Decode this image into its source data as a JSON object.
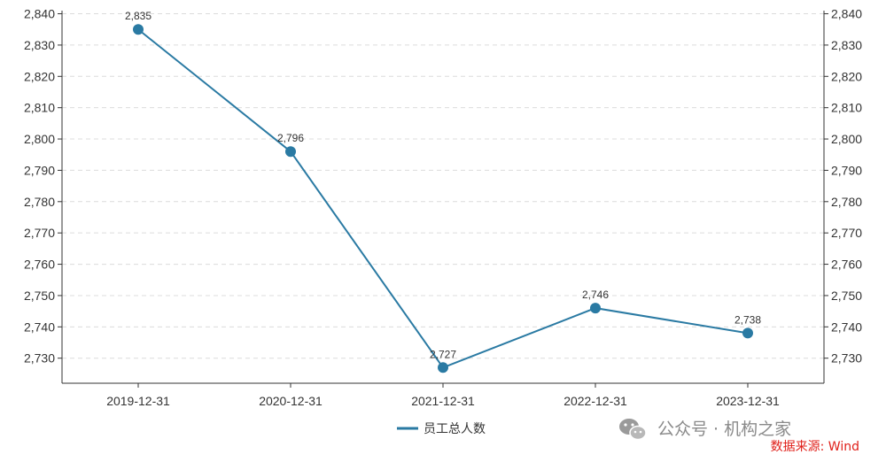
{
  "chart_data": {
    "type": "line",
    "categories": [
      "2019-12-31",
      "2020-12-31",
      "2021-12-31",
      "2022-12-31",
      "2023-12-31"
    ],
    "series": [
      {
        "name": "员工总人数",
        "values": [
          2835,
          2796,
          2727,
          2746,
          2738
        ],
        "color": "#2a7aa3"
      }
    ],
    "data_labels": [
      "2,835",
      "2,796",
      "2,727",
      "2,746",
      "2,738"
    ],
    "ylim": [
      2722,
      2841
    ],
    "y_ticks": [
      2730,
      2740,
      2750,
      2760,
      2770,
      2780,
      2790,
      2800,
      2810,
      2820,
      2830,
      2840
    ],
    "y_tick_labels": [
      "2,730",
      "2,740",
      "2,750",
      "2,760",
      "2,770",
      "2,780",
      "2,790",
      "2,800",
      "2,810",
      "2,820",
      "2,830",
      "2,840"
    ],
    "title": "",
    "xlabel": "",
    "ylabel": "",
    "grid": "horizontal-dashed",
    "legend_position": "bottom-center",
    "dual_y_axis": true
  },
  "watermark": {
    "text": "公众号 · 机构之家",
    "icon": "wechat-icon"
  },
  "source_note": "数据来源: Wind"
}
